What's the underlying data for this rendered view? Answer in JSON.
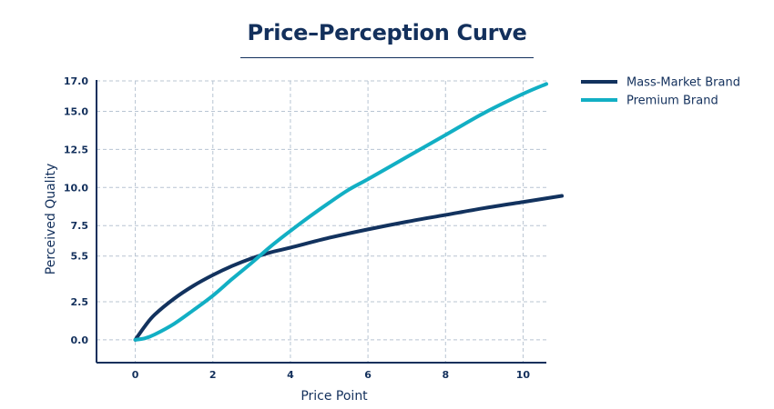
{
  "chart_data": {
    "type": "line",
    "title": "Price–Perception Curve",
    "xlabel": "Price Point",
    "ylabel": "Perceived Quality",
    "xlim": [
      -1,
      10.6
    ],
    "ylim": [
      -1.5,
      17.0
    ],
    "x_ticks": [
      0,
      2,
      4,
      6,
      8,
      10
    ],
    "y_ticks": [
      0.0,
      2.5,
      5.5,
      7.5,
      10.0,
      12.5,
      15.0,
      17.0
    ],
    "x_tick_labels": [
      "0",
      "2",
      "4",
      "6",
      "8",
      "10"
    ],
    "y_tick_labels": [
      "0.0",
      "2.5",
      "5.5",
      "7.5",
      "10.0",
      "12.5",
      "15.0",
      "17.0"
    ],
    "grid": true,
    "legend_position": "right",
    "series": [
      {
        "name": "Mass-Market Brand",
        "color": "#12325e",
        "x": [
          0,
          0.25,
          0.5,
          1,
          1.5,
          2,
          2.5,
          3,
          3.5,
          4,
          5,
          6,
          7,
          8,
          9,
          10,
          10.5,
          11
        ],
        "y": [
          0,
          0.9,
          1.65,
          2.7,
          3.55,
          4.25,
          4.85,
          5.35,
          5.75,
          6.05,
          6.7,
          7.25,
          7.75,
          8.2,
          8.65,
          9.05,
          9.25,
          9.45
        ]
      },
      {
        "name": "Premium Brand",
        "color": "#12afc4",
        "x": [
          0,
          0.25,
          0.5,
          1,
          1.5,
          2,
          2.5,
          3,
          3.5,
          4,
          4.5,
          5,
          5.5,
          6,
          7,
          8,
          9,
          10,
          10.6
        ],
        "y": [
          0,
          0.1,
          0.35,
          1.05,
          1.95,
          2.9,
          4.0,
          5.05,
          6.15,
          7.15,
          8.1,
          9.0,
          9.85,
          10.55,
          12.0,
          13.45,
          14.9,
          16.15,
          16.8
        ]
      }
    ]
  }
}
